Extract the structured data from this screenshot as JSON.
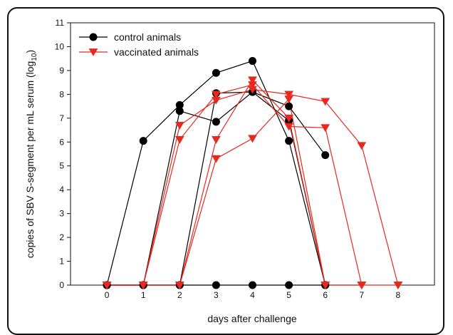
{
  "chart_data": {
    "type": "line",
    "xlabel": "days after challenge",
    "ylabel_main": "copies of SBV S-segment per mL serum (log",
    "ylabel_sub": "10",
    "ylabel_end": ")",
    "xlim": [
      -1,
      9
    ],
    "ylim": [
      0,
      11
    ],
    "xticks": [
      0,
      1,
      2,
      3,
      4,
      5,
      6,
      7,
      8
    ],
    "yticks": [
      0,
      1,
      2,
      3,
      4,
      5,
      6,
      7,
      8,
      9,
      10,
      11
    ],
    "legend": {
      "position": "top-left",
      "entries": [
        {
          "label": "control animals",
          "marker": "circle",
          "color": "#000000"
        },
        {
          "label": "vaccinated animals",
          "marker": "triangle-down",
          "color": "#e8281e"
        }
      ]
    },
    "groups": [
      {
        "name": "control animals",
        "color": "#000000",
        "marker": "circle",
        "series": [
          {
            "x": [
              0,
              1,
              2,
              3,
              4,
              5,
              6
            ],
            "y": [
              0,
              6.05,
              7.55,
              8.9,
              9.4,
              6.05,
              0
            ]
          },
          {
            "x": [
              0,
              1,
              2,
              3,
              4,
              5,
              6
            ],
            "y": [
              0,
              0,
              7.3,
              6.85,
              8.1,
              7.5,
              5.45
            ]
          },
          {
            "x": [
              0,
              1,
              2,
              3,
              4,
              5,
              6
            ],
            "y": [
              0,
              0,
              0,
              8.05,
              8.1,
              6.9,
              0
            ]
          },
          {
            "x": [
              0,
              1,
              2,
              3,
              4,
              5,
              6
            ],
            "y": [
              0,
              0,
              0,
              0,
              0,
              0,
              0
            ]
          }
        ]
      },
      {
        "name": "vaccinated animals",
        "color": "#e8281e",
        "marker": "triangle-down",
        "series": [
          {
            "x": [
              0,
              1,
              2,
              3,
              4,
              5,
              6,
              7,
              8
            ],
            "y": [
              0,
              0,
              6.7,
              7.75,
              8.2,
              8.0,
              7.7,
              5.85,
              0
            ]
          },
          {
            "x": [
              0,
              1,
              2,
              3,
              4,
              5,
              6,
              7,
              8
            ],
            "y": [
              0,
              0,
              6.1,
              8.0,
              8.4,
              6.65,
              6.6,
              0,
              0
            ]
          },
          {
            "x": [
              0,
              1,
              2,
              3,
              4,
              5,
              6,
              7
            ],
            "y": [
              0,
              0,
              0,
              6.1,
              8.6,
              7.0,
              0,
              0
            ]
          },
          {
            "x": [
              0,
              1,
              2,
              3,
              4,
              5,
              6,
              7
            ],
            "y": [
              0,
              0,
              0,
              5.3,
              6.15,
              7.8,
              0,
              0
            ]
          }
        ]
      }
    ]
  }
}
